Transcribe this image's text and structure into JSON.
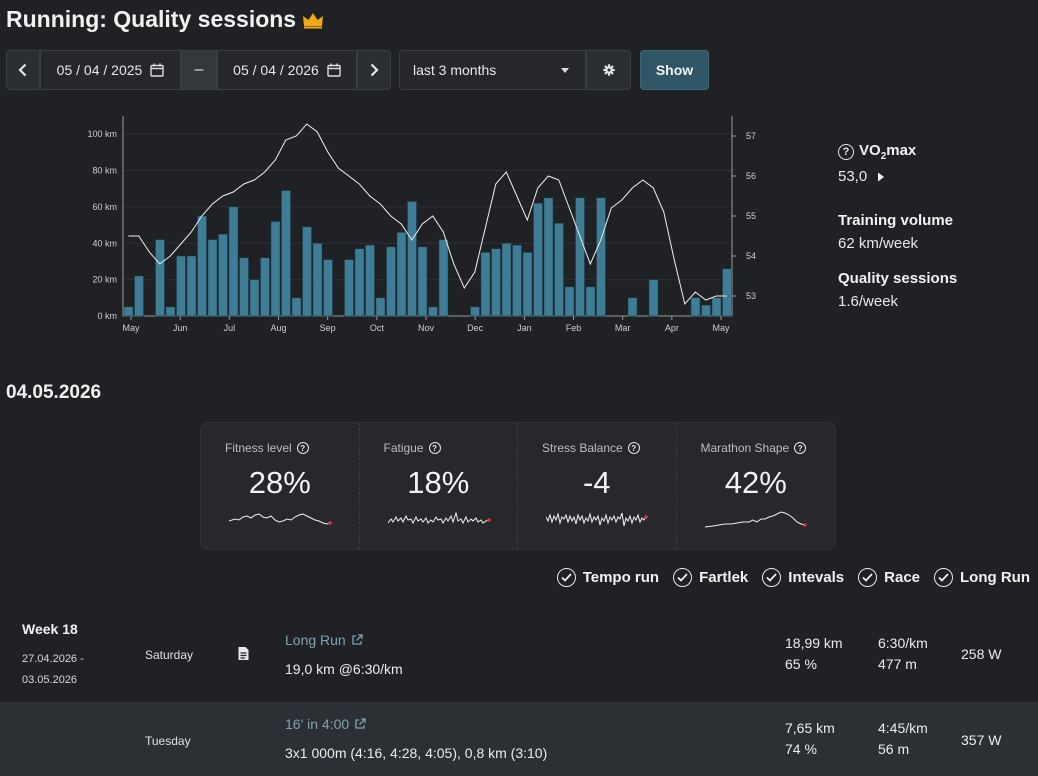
{
  "header": {
    "title": "Running: Quality sessions",
    "crown_icon": "crown-icon",
    "crown_color": "#f0a814"
  },
  "toolbar": {
    "date_from": "05 / 04 / 2025",
    "separator": "–",
    "date_to": "05 / 04 / 2026",
    "range_select": "last 3 months",
    "show_label": "Show"
  },
  "stats": {
    "vo2_label": "VO",
    "vo2_sub": "2",
    "vo2_suffix": "max",
    "vo2_value": "53,0",
    "volume_label": "Training volume",
    "volume_value": "62 km/week",
    "quality_label": "Quality sessions",
    "quality_value": "1.6/week"
  },
  "current_date": "04.05.2026",
  "metrics": [
    {
      "label": "Fitness level",
      "value": "28%"
    },
    {
      "label": "Fatigue",
      "value": "18%"
    },
    {
      "label": "Stress Balance",
      "value": "-4"
    },
    {
      "label": "Marathon Shape",
      "value": "42%"
    }
  ],
  "filters": [
    "Tempo run",
    "Fartlek",
    "Intevals",
    "Race",
    "Long Run"
  ],
  "rows": [
    {
      "week": "Week 18",
      "range_start": "27.04.2026 -",
      "range_end": "03.05.2026",
      "day": "Saturday",
      "title": "Long Run",
      "description": "19,0 km @6:30/km",
      "distance": "18,99 km",
      "hr_pct": "65 %",
      "pace": "6:30/km",
      "elevation": "477 m",
      "power": "258 W"
    },
    {
      "day": "Tuesday",
      "title": "16' in 4:00",
      "description": "3x1 000m (4:16, 4:28, 4:05), 0,8 km (3:10)",
      "distance": "7,65 km",
      "hr_pct": "74 %",
      "pace": "4:45/km",
      "elevation": "56 m",
      "power": "357 W"
    }
  ],
  "chart_data": {
    "type": "bar",
    "x_tick_labels": [
      "May",
      "Jun",
      "Jul",
      "Aug",
      "Sep",
      "Oct",
      "Nov",
      "Dec",
      "Jan",
      "Feb",
      "Mar",
      "Apr",
      "May"
    ],
    "y_left_ticks": [
      "0 km",
      "20 km",
      "40 km",
      "60 km",
      "80 km",
      "100 km"
    ],
    "y_left_range": [
      0,
      110
    ],
    "y_right_ticks": [
      "53",
      "54",
      "55",
      "56",
      "57"
    ],
    "y_right_range": [
      52.5,
      57.5
    ],
    "bar_color": "#3f7c95",
    "line_color": "#f0f0f0",
    "series": [
      {
        "kind": "bar",
        "unit": "km",
        "values": [
          5,
          22,
          0,
          42,
          5,
          33,
          33,
          55,
          42,
          45,
          60,
          32,
          20,
          32,
          52,
          69,
          10,
          49,
          40,
          31,
          0,
          31,
          37,
          39,
          10,
          38,
          46,
          63,
          38,
          5,
          42,
          0,
          0,
          5,
          35,
          37,
          40,
          39,
          35,
          62,
          65,
          51,
          16,
          65,
          16,
          65,
          0,
          0,
          10,
          0,
          20,
          0,
          0,
          0,
          10,
          6,
          10,
          26
        ]
      },
      {
        "kind": "line",
        "unit": "VO2max",
        "values": [
          54.5,
          54.5,
          54.1,
          53.8,
          54.0,
          54.3,
          54.6,
          55.0,
          55.3,
          55.5,
          55.6,
          55.8,
          55.9,
          56.1,
          56.4,
          56.9,
          57.0,
          57.3,
          57.1,
          56.6,
          56.2,
          56.0,
          55.8,
          55.5,
          55.3,
          55.0,
          54.8,
          54.4,
          54.8,
          55.0,
          54.6,
          53.8,
          53.2,
          53.6,
          54.7,
          55.8,
          56.1,
          55.5,
          54.9,
          55.7,
          56.0,
          55.9,
          55.2,
          54.5,
          53.8,
          54.4,
          55.2,
          55.4,
          55.7,
          55.9,
          55.7,
          55.1,
          53.9,
          52.8,
          53.1,
          52.9,
          53.0,
          53.0
        ]
      }
    ]
  }
}
